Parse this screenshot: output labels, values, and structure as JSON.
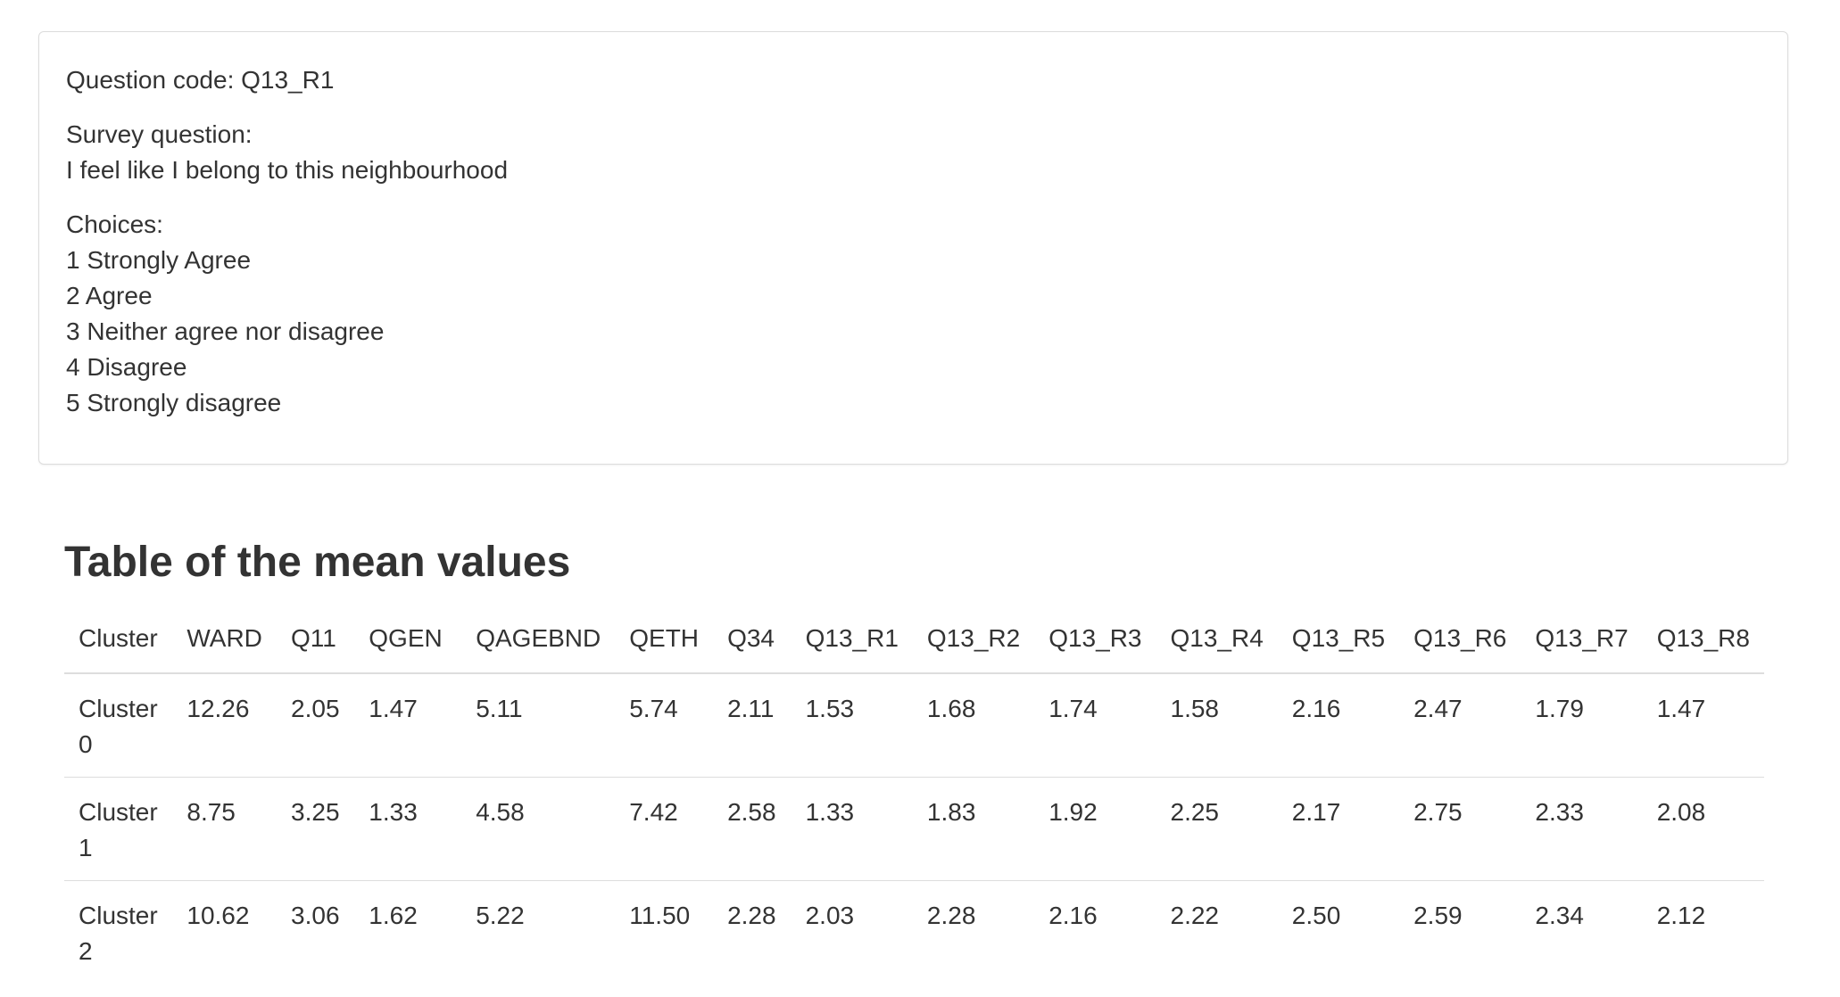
{
  "question_panel": {
    "code_line": "Question code: Q13_R1",
    "survey_label": "Survey question:",
    "survey_text": "I feel like I belong to this neighbourhood",
    "choices_label": "Choices:",
    "choices": [
      "1 Strongly Agree",
      "2 Agree",
      "3 Neither agree nor disagree",
      "4 Disagree",
      "5 Strongly disagree"
    ]
  },
  "means_table": {
    "title": "Table of the mean values",
    "headers": [
      "Cluster",
      "WARD",
      "Q11",
      "QGEN",
      "QAGEBND",
      "QETH",
      "Q34",
      "Q13_R1",
      "Q13_R2",
      "Q13_R3",
      "Q13_R4",
      "Q13_R5",
      "Q13_R6",
      "Q13_R7",
      "Q13_R8"
    ],
    "rows": [
      [
        "Cluster 0",
        "12.26",
        "2.05",
        "1.47",
        "5.11",
        "5.74",
        "2.11",
        "1.53",
        "1.68",
        "1.74",
        "1.58",
        "2.16",
        "2.47",
        "1.79",
        "1.47"
      ],
      [
        "Cluster 1",
        "8.75",
        "3.25",
        "1.33",
        "4.58",
        "7.42",
        "2.58",
        "1.33",
        "1.83",
        "1.92",
        "2.25",
        "2.17",
        "2.75",
        "2.33",
        "2.08"
      ],
      [
        "Cluster 2",
        "10.62",
        "3.06",
        "1.62",
        "5.22",
        "11.50",
        "2.28",
        "2.03",
        "2.28",
        "2.16",
        "2.22",
        "2.50",
        "2.59",
        "2.34",
        "2.12"
      ]
    ]
  }
}
